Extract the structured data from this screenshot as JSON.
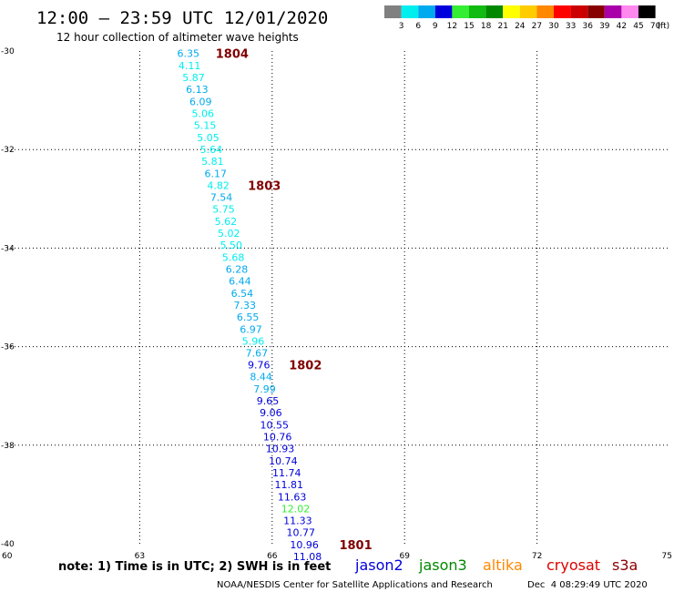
{
  "header": {
    "title": "12:00 – 23:59 UTC 12/01/2020",
    "subtitle": "12 hour collection of altimeter wave heights"
  },
  "color_scale": {
    "labels": [
      "3",
      "6",
      "9",
      "12",
      "15",
      "18",
      "21",
      "24",
      "27",
      "30",
      "33",
      "36",
      "39",
      "42",
      "45",
      "70"
    ],
    "unit": "(ft)",
    "colors": [
      "#808080",
      "#00eeee",
      "#00aaee",
      "#0000dd",
      "#33ee33",
      "#11bb11",
      "#008800",
      "#ffff00",
      "#ffcc00",
      "#ff8800",
      "#ff0000",
      "#cc0000",
      "#880000",
      "#aa00aa",
      "#ff88ee",
      "#000000"
    ]
  },
  "chart_data": {
    "type": "scatter",
    "title": "12:00 – 23:59 UTC 12/01/2020",
    "subtitle": "12 hour collection of altimeter wave heights",
    "xlabel": "",
    "ylabel": "",
    "xlim": [
      60,
      75
    ],
    "ylim": [
      -40,
      -30
    ],
    "x_ticks": [
      "60",
      "63",
      "66",
      "69",
      "72",
      "75"
    ],
    "y_ticks": [
      "-30",
      "-32",
      "-34",
      "-36",
      "-38",
      "-40"
    ],
    "grid": true,
    "points": [
      {
        "lon": 64.1,
        "lat": -30.05,
        "label": "6.35",
        "color": "#00aaee"
      },
      {
        "lon": 64.13,
        "lat": -30.3,
        "label": "4.11",
        "color": "#00eeee"
      },
      {
        "lon": 64.22,
        "lat": -30.54,
        "label": "5.87",
        "color": "#00eeee"
      },
      {
        "lon": 64.3,
        "lat": -30.78,
        "label": "6.13",
        "color": "#00aaee"
      },
      {
        "lon": 64.38,
        "lat": -31.03,
        "label": "6.09",
        "color": "#00aaee"
      },
      {
        "lon": 64.43,
        "lat": -31.27,
        "label": "5.06",
        "color": "#00eeee"
      },
      {
        "lon": 64.48,
        "lat": -31.51,
        "label": "5.15",
        "color": "#00eeee"
      },
      {
        "lon": 64.55,
        "lat": -31.76,
        "label": "5.05",
        "color": "#00eeee"
      },
      {
        "lon": 64.62,
        "lat": -32.0,
        "label": "5.64",
        "color": "#00eeee"
      },
      {
        "lon": 64.65,
        "lat": -32.24,
        "label": "5.81",
        "color": "#00eeee"
      },
      {
        "lon": 64.72,
        "lat": -32.49,
        "label": "6.17",
        "color": "#00aaee"
      },
      {
        "lon": 64.78,
        "lat": -32.73,
        "label": "4.82",
        "color": "#00eeee"
      },
      {
        "lon": 64.85,
        "lat": -32.97,
        "label": "7.54",
        "color": "#00aaee"
      },
      {
        "lon": 64.9,
        "lat": -33.21,
        "label": "5.75",
        "color": "#00eeee"
      },
      {
        "lon": 64.95,
        "lat": -33.46,
        "label": "5.62",
        "color": "#00eeee"
      },
      {
        "lon": 65.02,
        "lat": -33.7,
        "label": "5.02",
        "color": "#00eeee"
      },
      {
        "lon": 65.07,
        "lat": -33.94,
        "label": "5.50",
        "color": "#00eeee"
      },
      {
        "lon": 65.12,
        "lat": -34.19,
        "label": "5.68",
        "color": "#00eeee"
      },
      {
        "lon": 65.2,
        "lat": -34.43,
        "label": "6.28",
        "color": "#00aaee"
      },
      {
        "lon": 65.27,
        "lat": -34.67,
        "label": "6.44",
        "color": "#00aaee"
      },
      {
        "lon": 65.32,
        "lat": -34.92,
        "label": "6.54",
        "color": "#00aaee"
      },
      {
        "lon": 65.38,
        "lat": -35.16,
        "label": "7.33",
        "color": "#00aaee"
      },
      {
        "lon": 65.45,
        "lat": -35.4,
        "label": "6.55",
        "color": "#00aaee"
      },
      {
        "lon": 65.52,
        "lat": -35.65,
        "label": "6.97",
        "color": "#00aaee"
      },
      {
        "lon": 65.57,
        "lat": -35.89,
        "label": "5.96",
        "color": "#00eeee"
      },
      {
        "lon": 65.65,
        "lat": -36.13,
        "label": "7.67",
        "color": "#00aaee"
      },
      {
        "lon": 65.7,
        "lat": -36.37,
        "label": "9.76",
        "color": "#0000dd"
      },
      {
        "lon": 65.75,
        "lat": -36.61,
        "label": "8.44",
        "color": "#00aaee"
      },
      {
        "lon": 65.83,
        "lat": -36.86,
        "label": "7.99",
        "color": "#00aaee"
      },
      {
        "lon": 65.9,
        "lat": -37.1,
        "label": "9.65",
        "color": "#0000dd"
      },
      {
        "lon": 65.97,
        "lat": -37.34,
        "label": "9.06",
        "color": "#0000dd"
      },
      {
        "lon": 66.05,
        "lat": -37.59,
        "label": "10.55",
        "color": "#0000dd"
      },
      {
        "lon": 66.12,
        "lat": -37.83,
        "label": "10.76",
        "color": "#0000dd"
      },
      {
        "lon": 66.18,
        "lat": -38.07,
        "label": "10.93",
        "color": "#0000dd"
      },
      {
        "lon": 66.25,
        "lat": -38.32,
        "label": "10.74",
        "color": "#0000dd"
      },
      {
        "lon": 66.33,
        "lat": -38.56,
        "label": "11.74",
        "color": "#0000dd"
      },
      {
        "lon": 66.38,
        "lat": -38.8,
        "label": "11.81",
        "color": "#0000dd"
      },
      {
        "lon": 66.45,
        "lat": -39.05,
        "label": "11.63",
        "color": "#0000dd"
      },
      {
        "lon": 66.53,
        "lat": -39.29,
        "label": "12.02",
        "color": "#33ee33"
      },
      {
        "lon": 66.58,
        "lat": -39.53,
        "label": "11.33",
        "color": "#0000dd"
      },
      {
        "lon": 66.65,
        "lat": -39.77,
        "label": "10.77",
        "color": "#0000dd"
      },
      {
        "lon": 66.73,
        "lat": -40.02,
        "label": "10.96",
        "color": "#0000dd"
      },
      {
        "lon": 66.8,
        "lat": -40.26,
        "label": "11.08",
        "color": "#0000dd"
      }
    ],
    "pass_labels": [
      {
        "label": "1804",
        "lon": 64.72,
        "lat": -30.05
      },
      {
        "label": "1803",
        "lon": 65.45,
        "lat": -32.73
      },
      {
        "label": "1802",
        "lon": 66.38,
        "lat": -36.37
      },
      {
        "label": "1801",
        "lon": 67.52,
        "lat": -40.02
      }
    ]
  },
  "footer": {
    "note": "note: 1) Time is in UTC; 2) SWH is in feet",
    "satellites": [
      {
        "name": "jason2",
        "color": "#0000dd"
      },
      {
        "name": "jason3",
        "color": "#008800"
      },
      {
        "name": "altika",
        "color": "#ff8800"
      },
      {
        "name": "cryosat",
        "color": "#dd0000"
      },
      {
        "name": "s3a",
        "color": "#880000"
      }
    ],
    "credit": "NOAA/NESDIS Center for Satellite Applications and Research",
    "timestamp": "Dec  4 08:29:49 UTC 2020"
  }
}
